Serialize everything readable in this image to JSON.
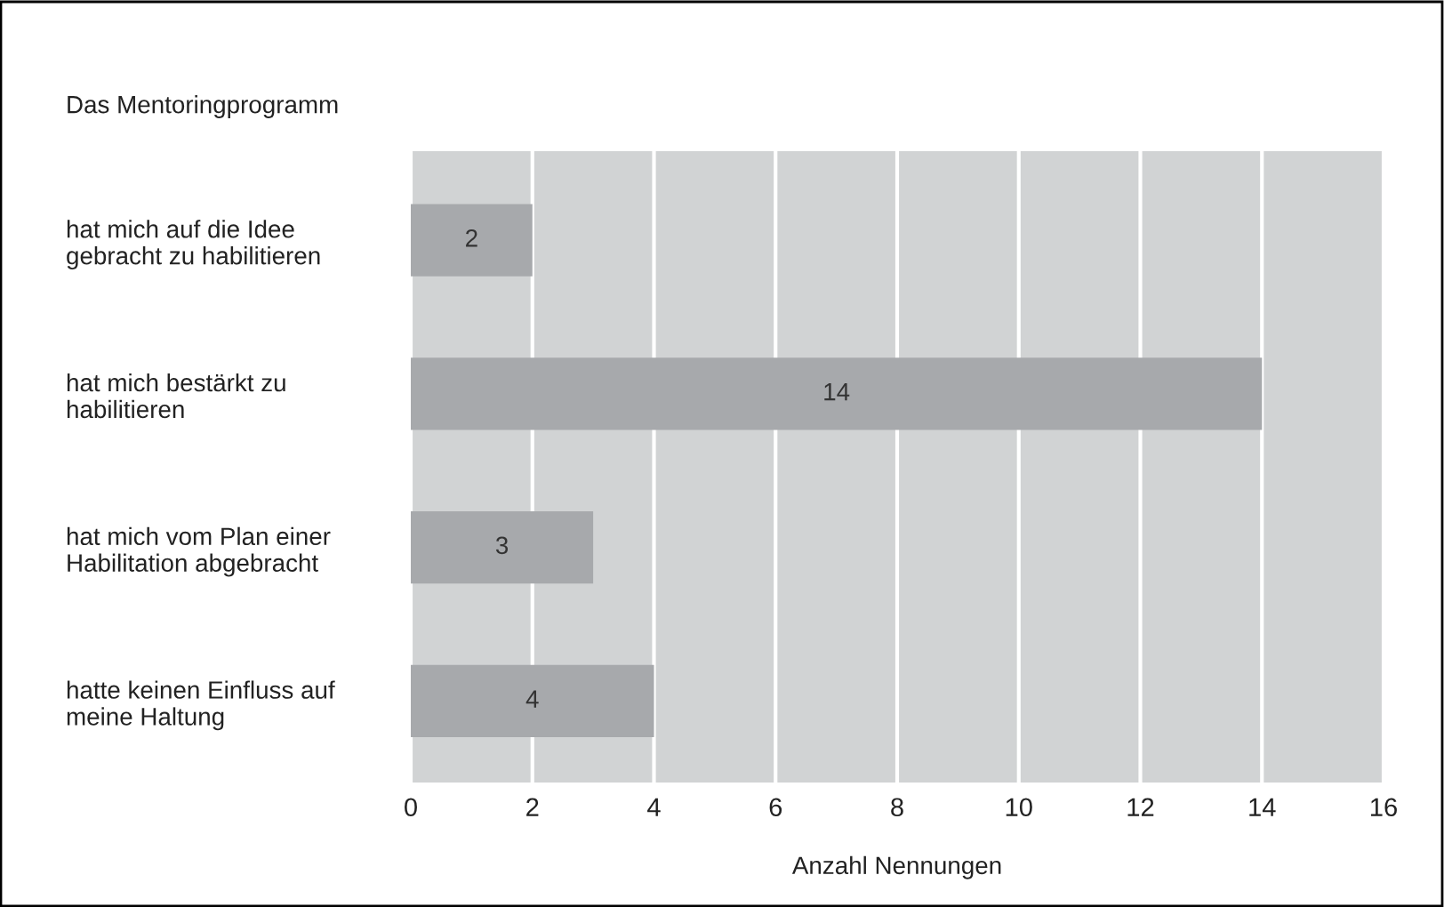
{
  "chart_data": {
    "type": "bar",
    "orientation": "horizontal",
    "title": "Das Mentoringprogramm",
    "xlabel": "Anzahl Nennungen",
    "categories": [
      "hat mich auf die Idee\ngebracht zu habilitieren",
      "hat mich bestärkt zu\nhabilitieren",
      "hat mich vom Plan einer\nHabilitation abgebracht",
      "hatte keinen Einfluss auf\nmeine Haltung"
    ],
    "values": [
      2,
      14,
      3,
      4
    ],
    "color": "#a7a9ac",
    "data_labels": true,
    "xlim": [
      0,
      16
    ],
    "xticks": [
      0,
      2,
      4,
      6,
      8,
      10,
      12,
      14,
      16
    ],
    "grid": "x",
    "legend": false
  }
}
